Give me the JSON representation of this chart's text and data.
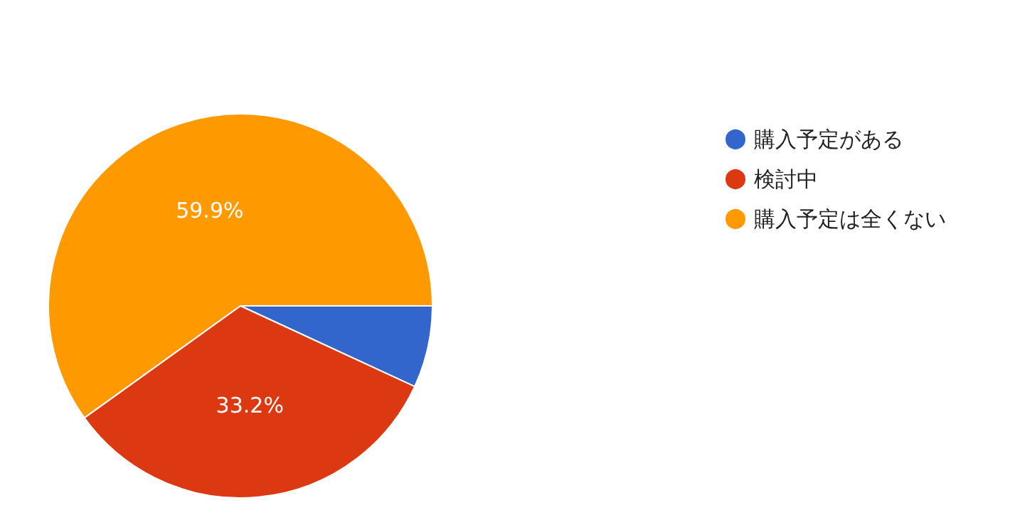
{
  "chart_data": {
    "type": "pie",
    "categories": [
      "購入予定がある",
      "検討中",
      "購入予定は全くない"
    ],
    "values": [
      6.9,
      33.2,
      59.9
    ],
    "colors": [
      "#3366cc",
      "#dc3912",
      "#ff9900"
    ],
    "value_labels": [
      null,
      "33.2%",
      "59.9%"
    ],
    "legend": "top right"
  }
}
